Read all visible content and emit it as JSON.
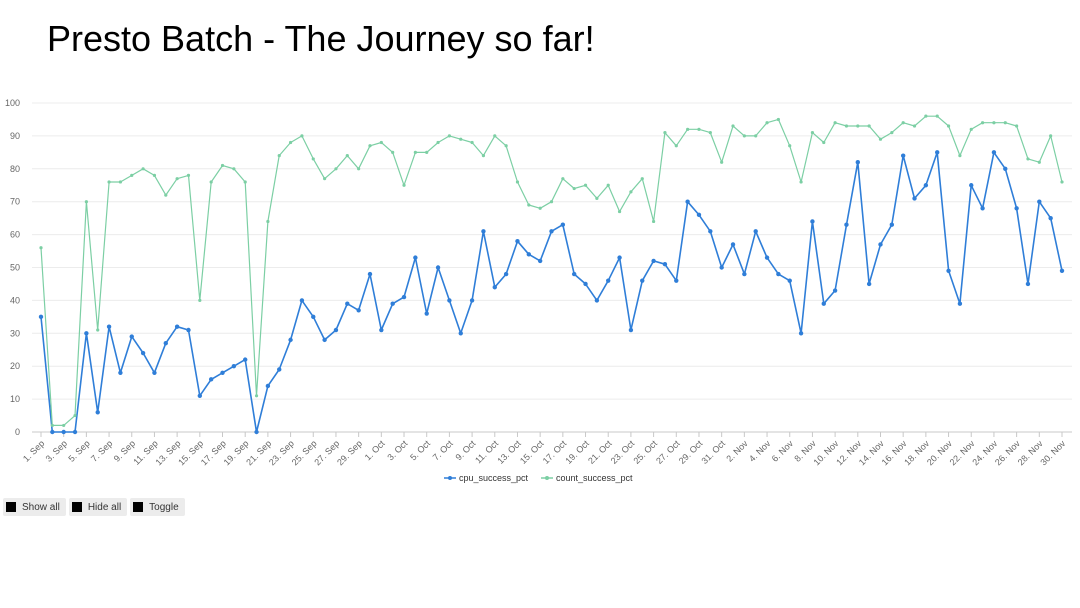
{
  "title": "Presto Batch - The Journey so far!",
  "controls": {
    "show_all": "Show all",
    "hide_all": "Hide all",
    "toggle": "Toggle"
  },
  "colors": {
    "cpu": "#2f7ed8",
    "count": "#7ccfa4",
    "grid": "#ececec",
    "axis": "#c8c8c8"
  },
  "chart_data": {
    "type": "line",
    "ylim": [
      0,
      100
    ],
    "yticks": [
      0,
      10,
      20,
      30,
      40,
      50,
      60,
      70,
      80,
      90,
      100
    ],
    "grid": true,
    "legend": "bottom-center",
    "x": [
      "1. Sep",
      "2. Sep",
      "3. Sep",
      "4. Sep",
      "5. Sep",
      "6. Sep",
      "7. Sep",
      "8. Sep",
      "9. Sep",
      "10. Sep",
      "11. Sep",
      "12. Sep",
      "13. Sep",
      "14. Sep",
      "15. Sep",
      "16. Sep",
      "17. Sep",
      "18. Sep",
      "19. Sep",
      "20. Sep",
      "21. Sep",
      "22. Sep",
      "23. Sep",
      "24. Sep",
      "25. Sep",
      "26. Sep",
      "27. Sep",
      "28. Sep",
      "29. Sep",
      "30. Sep",
      "1. Oct",
      "2. Oct",
      "3. Oct",
      "4. Oct",
      "5. Oct",
      "6. Oct",
      "7. Oct",
      "8. Oct",
      "9. Oct",
      "10. Oct",
      "11. Oct",
      "12. Oct",
      "13. Oct",
      "14. Oct",
      "15. Oct",
      "16. Oct",
      "17. Oct",
      "18. Oct",
      "19. Oct",
      "20. Oct",
      "21. Oct",
      "22. Oct",
      "23. Oct",
      "24. Oct",
      "25. Oct",
      "26. Oct",
      "27. Oct",
      "28. Oct",
      "29. Oct",
      "30. Oct",
      "31. Oct",
      "1. Nov",
      "2. Nov",
      "3. Nov",
      "4. Nov",
      "5. Nov",
      "6. Nov",
      "7. Nov",
      "8. Nov",
      "9. Nov",
      "10. Nov",
      "11. Nov",
      "12. Nov",
      "13. Nov",
      "14. Nov",
      "15. Nov",
      "16. Nov",
      "17. Nov",
      "18. Nov",
      "19. Nov",
      "20. Nov",
      "21. Nov",
      "22. Nov",
      "23. Nov",
      "24. Nov",
      "25. Nov",
      "26. Nov",
      "27. Nov",
      "28. Nov",
      "29. Nov",
      "30. Nov"
    ],
    "tick_labels": [
      "1. Sep",
      "3. Sep",
      "5. Sep",
      "7. Sep",
      "9. Sep",
      "11. Sep",
      "13. Sep",
      "15. Sep",
      "17. Sep",
      "19. Sep",
      "21. Sep",
      "23. Sep",
      "25. Sep",
      "27. Sep",
      "29. Sep",
      "1. Oct",
      "3. Oct",
      "5. Oct",
      "7. Oct",
      "9. Oct",
      "11. Oct",
      "13. Oct",
      "15. Oct",
      "17. Oct",
      "19. Oct",
      "21. Oct",
      "23. Oct",
      "25. Oct",
      "27. Oct",
      "29. Oct",
      "31. Oct",
      "2. Nov",
      "4. Nov",
      "6. Nov",
      "8. Nov",
      "10. Nov",
      "12. Nov",
      "14. Nov",
      "16. Nov",
      "18. Nov",
      "20. Nov",
      "22. Nov",
      "24. Nov",
      "26. Nov",
      "28. Nov",
      "30. Nov"
    ],
    "series": [
      {
        "name": "cpu_success_pct",
        "values": [
          35,
          0,
          0,
          0,
          30,
          6,
          32,
          18,
          29,
          24,
          18,
          27,
          32,
          31,
          11,
          16,
          18,
          20,
          22,
          0,
          14,
          19,
          28,
          40,
          35,
          28,
          31,
          39,
          37,
          48,
          31,
          39,
          41,
          53,
          36,
          50,
          40,
          30,
          40,
          61,
          44,
          48,
          58,
          54,
          52,
          61,
          63,
          48,
          45,
          40,
          46,
          53,
          31,
          46,
          52,
          51,
          46,
          70,
          66,
          61,
          50,
          57,
          48,
          61,
          53,
          48,
          46,
          30,
          64,
          39,
          43,
          63,
          82,
          45,
          57,
          63,
          84,
          71,
          75,
          85,
          49,
          39,
          75,
          68,
          85,
          80,
          68,
          45,
          70,
          65,
          49
        ]
      },
      {
        "name": "count_success_pct",
        "values": [
          56,
          2,
          2,
          5,
          70,
          31,
          76,
          76,
          78,
          80,
          78,
          72,
          77,
          78,
          40,
          76,
          81,
          80,
          76,
          11,
          64,
          84,
          88,
          90,
          83,
          77,
          80,
          84,
          80,
          87,
          88,
          85,
          75,
          85,
          85,
          88,
          90,
          89,
          88,
          84,
          90,
          87,
          76,
          69,
          68,
          70,
          77,
          74,
          75,
          71,
          75,
          67,
          73,
          77,
          64,
          91,
          87,
          92,
          92,
          91,
          82,
          93,
          90,
          90,
          94,
          95,
          87,
          76,
          91,
          88,
          94,
          93,
          93,
          93,
          89,
          91,
          94,
          93,
          96,
          96,
          93,
          84,
          92,
          94,
          94,
          94,
          93,
          83,
          82,
          90,
          76
        ]
      }
    ]
  }
}
